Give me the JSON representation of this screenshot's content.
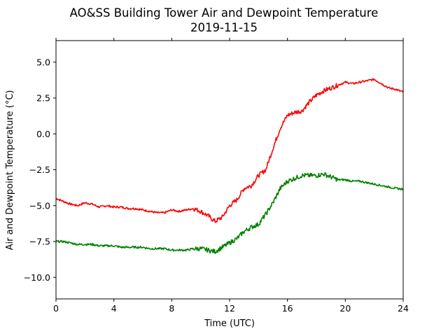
{
  "chart_data": {
    "type": "line",
    "title": "AO&SS Building Tower Air and Dewpoint Temperature",
    "subtitle": "2019-11-15",
    "xlabel": "Time (UTC)",
    "ylabel": "Air and Dewpoint Temperature (°C)",
    "xlim": [
      0,
      24
    ],
    "ylim": [
      -11.5,
      6.5
    ],
    "xticks": [
      0,
      4,
      8,
      12,
      16,
      20,
      24
    ],
    "xtick_labels": [
      "0",
      "4",
      "8",
      "12",
      "16",
      "20",
      "24"
    ],
    "yticks": [
      -10.0,
      -7.5,
      -5.0,
      -2.5,
      0.0,
      2.5,
      5.0
    ],
    "ytick_labels": [
      "−10.0",
      "−7.5",
      "−5.0",
      "−2.5",
      "0.0",
      "2.5",
      "5.0"
    ],
    "grid": false,
    "legend": "none",
    "series": [
      {
        "color": "#ff0000",
        "x": [
          0,
          0.5,
          1,
          1.5,
          2,
          2.5,
          3,
          3.5,
          4,
          4.5,
          5,
          5.5,
          6,
          6.5,
          7,
          7.5,
          8,
          8.5,
          9,
          9.5,
          10,
          10.5,
          11,
          11.5,
          12,
          12.5,
          13,
          13.5,
          14,
          14.5,
          15,
          15.5,
          16,
          16.5,
          17,
          17.5,
          18,
          18.5,
          19,
          19.5,
          20,
          20.5,
          21,
          21.5,
          22,
          22.5,
          23,
          23.5,
          24
        ],
        "y": [
          -4.5,
          -4.7,
          -4.9,
          -5.0,
          -4.8,
          -4.9,
          -5.1,
          -5.0,
          -5.1,
          -5.1,
          -5.2,
          -5.2,
          -5.3,
          -5.4,
          -5.5,
          -5.5,
          -5.3,
          -5.4,
          -5.3,
          -5.2,
          -5.4,
          -5.7,
          -6.1,
          -5.8,
          -5.0,
          -4.6,
          -3.8,
          -3.6,
          -2.9,
          -2.5,
          -1.0,
          0.4,
          1.3,
          1.5,
          1.6,
          2.2,
          2.7,
          3.0,
          3.2,
          3.4,
          3.6,
          3.5,
          3.6,
          3.7,
          3.8,
          3.5,
          3.2,
          3.1,
          2.9
        ]
      },
      {
        "color": "#008000",
        "x": [
          0,
          0.5,
          1,
          1.5,
          2,
          2.5,
          3,
          3.5,
          4,
          4.5,
          5,
          5.5,
          6,
          6.5,
          7,
          7.5,
          8,
          8.5,
          9,
          9.5,
          10,
          10.5,
          11,
          11.5,
          12,
          12.5,
          13,
          13.5,
          14,
          14.5,
          15,
          15.5,
          16,
          16.5,
          17,
          17.5,
          18,
          18.5,
          19,
          19.5,
          20,
          20.5,
          21,
          21.5,
          22,
          22.5,
          23,
          23.5,
          24
        ],
        "y": [
          -7.5,
          -7.5,
          -7.6,
          -7.7,
          -7.7,
          -7.7,
          -7.8,
          -7.8,
          -7.8,
          -7.9,
          -7.9,
          -7.9,
          -7.9,
          -8.0,
          -8.0,
          -8.0,
          -8.1,
          -8.1,
          -8.1,
          -8.0,
          -8.0,
          -8.1,
          -8.2,
          -7.9,
          -7.6,
          -7.3,
          -6.8,
          -6.5,
          -6.3,
          -5.6,
          -4.8,
          -3.8,
          -3.3,
          -3.1,
          -2.9,
          -2.9,
          -2.9,
          -2.8,
          -3.0,
          -3.2,
          -3.2,
          -3.3,
          -3.3,
          -3.4,
          -3.5,
          -3.6,
          -3.7,
          -3.8,
          -3.85
        ]
      }
    ]
  }
}
